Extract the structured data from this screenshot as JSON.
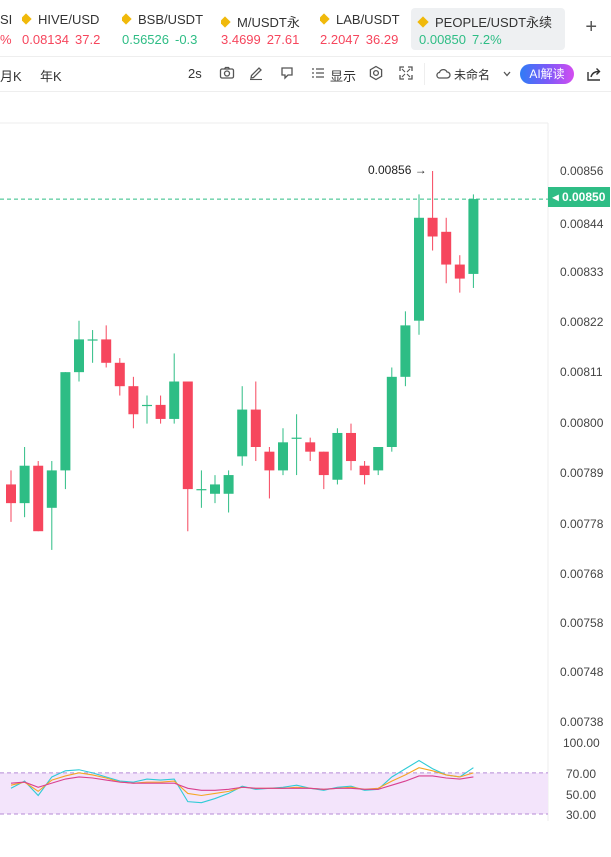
{
  "tickers": [
    {
      "name": "SI",
      "price": "%",
      "pct": "",
      "dir": "down"
    },
    {
      "name": "HIVE/USD",
      "price": "0.08134",
      "pct": "37.2",
      "dir": "down"
    },
    {
      "name": "BSB/USDT",
      "price": "0.56526",
      "pct": "-0.3",
      "dir": "up"
    },
    {
      "name": "M/USDT永",
      "price": "3.4699",
      "pct": "27.61",
      "dir": "down"
    },
    {
      "name": "LAB/USDT",
      "price": "2.2047",
      "pct": "36.29",
      "dir": "down"
    },
    {
      "name": "PEOPLE/USDT永续",
      "price": "0.00850",
      "pct": "7.2%",
      "dir": "up"
    }
  ],
  "toolbar": {
    "month": "月K",
    "year": "年K",
    "interval": "2s",
    "display": "显示",
    "layout_name": "未命名",
    "ai_button": "AI解读"
  },
  "price_axis": [
    "0.00856",
    "0.00844",
    "0.00833",
    "0.00822",
    "0.00811",
    "0.00800",
    "0.00789",
    "0.00778",
    "0.00768",
    "0.00758",
    "0.00748",
    "0.00738"
  ],
  "current_price": "0.00850",
  "high_marker": "0.00856",
  "indicator_axis": [
    "100.00",
    "70.00",
    "50.00",
    "30.00"
  ],
  "colors": {
    "up": "#2ebd85",
    "down": "#f6465d",
    "rsi_band": "#f3e4fb"
  },
  "chart_data": {
    "type": "candlestick",
    "candles": [
      {
        "o": 0.00789,
        "h": 0.00792,
        "l": 0.00781,
        "c": 0.00785
      },
      {
        "o": 0.00785,
        "h": 0.00797,
        "l": 0.00782,
        "c": 0.00793
      },
      {
        "o": 0.00793,
        "h": 0.00794,
        "l": 0.00779,
        "c": 0.00779
      },
      {
        "o": 0.00784,
        "h": 0.00794,
        "l": 0.00775,
        "c": 0.00792
      },
      {
        "o": 0.00792,
        "h": 0.00813,
        "l": 0.00788,
        "c": 0.00813
      },
      {
        "o": 0.00813,
        "h": 0.00824,
        "l": 0.00811,
        "c": 0.0082
      },
      {
        "o": 0.0082,
        "h": 0.00822,
        "l": 0.00815,
        "c": 0.0082
      },
      {
        "o": 0.0082,
        "h": 0.00823,
        "l": 0.00814,
        "c": 0.00815
      },
      {
        "o": 0.00815,
        "h": 0.00816,
        "l": 0.00808,
        "c": 0.0081
      },
      {
        "o": 0.0081,
        "h": 0.00812,
        "l": 0.00801,
        "c": 0.00804
      },
      {
        "o": 0.00806,
        "h": 0.00808,
        "l": 0.00802,
        "c": 0.00806
      },
      {
        "o": 0.00806,
        "h": 0.00808,
        "l": 0.00802,
        "c": 0.00803
      },
      {
        "o": 0.00803,
        "h": 0.00817,
        "l": 0.00802,
        "c": 0.00811
      },
      {
        "o": 0.00811,
        "h": 0.00811,
        "l": 0.00779,
        "c": 0.00788
      },
      {
        "o": 0.00788,
        "h": 0.00792,
        "l": 0.00784,
        "c": 0.00788
      },
      {
        "o": 0.00787,
        "h": 0.00791,
        "l": 0.00785,
        "c": 0.00789
      },
      {
        "o": 0.00787,
        "h": 0.00792,
        "l": 0.00783,
        "c": 0.00791
      },
      {
        "o": 0.00795,
        "h": 0.0081,
        "l": 0.00793,
        "c": 0.00805
      },
      {
        "o": 0.00805,
        "h": 0.00811,
        "l": 0.00794,
        "c": 0.00797
      },
      {
        "o": 0.00796,
        "h": 0.00797,
        "l": 0.00786,
        "c": 0.00792
      },
      {
        "o": 0.00792,
        "h": 0.00801,
        "l": 0.00791,
        "c": 0.00798
      },
      {
        "o": 0.00799,
        "h": 0.00804,
        "l": 0.00791,
        "c": 0.00799
      },
      {
        "o": 0.00798,
        "h": 0.00799,
        "l": 0.00794,
        "c": 0.00796
      },
      {
        "o": 0.00796,
        "h": 0.00796,
        "l": 0.00788,
        "c": 0.00791
      },
      {
        "o": 0.0079,
        "h": 0.00801,
        "l": 0.00789,
        "c": 0.008
      },
      {
        "o": 0.008,
        "h": 0.00802,
        "l": 0.00792,
        "c": 0.00794
      },
      {
        "o": 0.00793,
        "h": 0.00794,
        "l": 0.00789,
        "c": 0.00791
      },
      {
        "o": 0.00792,
        "h": 0.00797,
        "l": 0.00791,
        "c": 0.00797
      },
      {
        "o": 0.00797,
        "h": 0.00814,
        "l": 0.00796,
        "c": 0.00812
      },
      {
        "o": 0.00812,
        "h": 0.00826,
        "l": 0.0081,
        "c": 0.00823
      },
      {
        "o": 0.00824,
        "h": 0.00851,
        "l": 0.00821,
        "c": 0.00846
      },
      {
        "o": 0.00846,
        "h": 0.00856,
        "l": 0.00839,
        "c": 0.00842
      },
      {
        "o": 0.00843,
        "h": 0.00846,
        "l": 0.00832,
        "c": 0.00836
      },
      {
        "o": 0.00836,
        "h": 0.00838,
        "l": 0.0083,
        "c": 0.00833
      },
      {
        "o": 0.00834,
        "h": 0.00851,
        "l": 0.00831,
        "c": 0.0085
      }
    ],
    "indicator": {
      "axis": [
        30,
        100
      ],
      "band": [
        30,
        70
      ],
      "series": [
        {
          "color": "#2ecbd6",
          "values": [
            55,
            62,
            48,
            66,
            72,
            73,
            70,
            66,
            62,
            61,
            64,
            63,
            64,
            42,
            41,
            45,
            50,
            57,
            54,
            55,
            56,
            58,
            55,
            53,
            56,
            57,
            53,
            54,
            66,
            74,
            82,
            74,
            68,
            66,
            75
          ]
        },
        {
          "color": "#f5a623",
          "values": [
            58,
            61,
            52,
            63,
            67,
            70,
            68,
            65,
            61,
            60,
            61,
            61,
            62,
            50,
            48,
            50,
            52,
            56,
            55,
            55,
            55,
            56,
            55,
            54,
            55,
            56,
            54,
            55,
            62,
            68,
            75,
            72,
            68,
            66,
            70
          ]
        },
        {
          "color": "#d9408f",
          "values": [
            60,
            61,
            56,
            60,
            64,
            66,
            65,
            63,
            61,
            60,
            60,
            60,
            60,
            55,
            53,
            53,
            54,
            56,
            55,
            55,
            55,
            55,
            55,
            54,
            55,
            55,
            54,
            54,
            58,
            62,
            67,
            67,
            65,
            64,
            66
          ]
        }
      ]
    }
  }
}
